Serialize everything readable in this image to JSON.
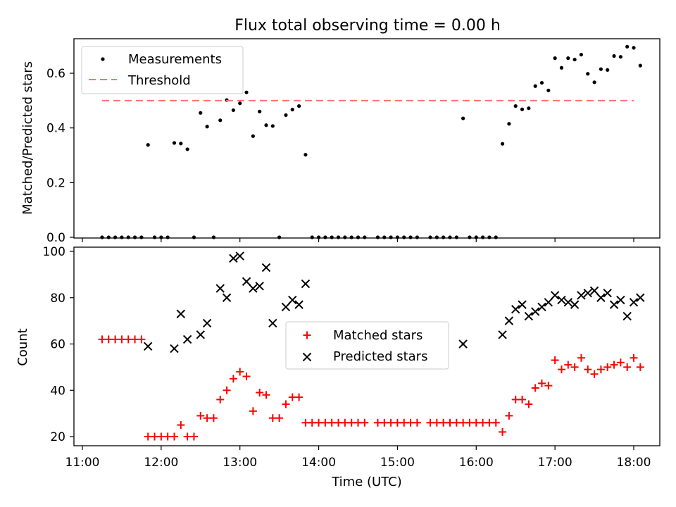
{
  "colors": {
    "measurements": "#000000",
    "threshold": "#ff7070",
    "matched": "#ff0000",
    "predicted": "#000000"
  },
  "chart_data": [
    {
      "type": "scatter",
      "title": "Flux total observing time = 0.00 h",
      "xlabel": "",
      "ylabel": "Matched/Predicted stars",
      "xlim": [
        "11:00",
        "18:00"
      ],
      "ylim": [
        0,
        0.72
      ],
      "yticks": [
        "0.0",
        "0.2",
        "0.4",
        "0.6"
      ],
      "legend_position": "top-left",
      "threshold": {
        "name": "Threshold",
        "value": 0.5,
        "x_range": [
          "11:15",
          "18:00"
        ]
      },
      "series": [
        {
          "name": "Measurements",
          "points": [
            [
              "11:15",
              0
            ],
            [
              "11:20",
              0
            ],
            [
              "11:25",
              0
            ],
            [
              "11:30",
              0
            ],
            [
              "11:35",
              0
            ],
            [
              "11:40",
              0
            ],
            [
              "11:45",
              0
            ],
            [
              "11:50",
              0.338
            ],
            [
              "11:55",
              0
            ],
            [
              "12:00",
              0
            ],
            [
              "12:05",
              0
            ],
            [
              "12:10",
              0.345
            ],
            [
              "12:15",
              0.343
            ],
            [
              "12:20",
              0.322
            ],
            [
              "12:25",
              0
            ],
            [
              "12:30",
              0.455
            ],
            [
              "12:35",
              0.405
            ],
            [
              "12:40",
              0
            ],
            [
              "12:45",
              0.428
            ],
            [
              "12:50",
              0.502
            ],
            [
              "12:55",
              0.465
            ],
            [
              "13:00",
              0.49
            ],
            [
              "13:05",
              0.53
            ],
            [
              "13:10",
              0.37
            ],
            [
              "13:15",
              0.46
            ],
            [
              "13:20",
              0.41
            ],
            [
              "13:25",
              0.407
            ],
            [
              "13:30",
              0
            ],
            [
              "13:35",
              0.447
            ],
            [
              "13:40",
              0.467
            ],
            [
              "13:45",
              0.48
            ],
            [
              "13:50",
              0.302
            ],
            [
              "13:55",
              0
            ],
            [
              "14:00",
              0
            ],
            [
              "14:05",
              0
            ],
            [
              "14:10",
              0
            ],
            [
              "14:15",
              0
            ],
            [
              "14:20",
              0
            ],
            [
              "14:25",
              0
            ],
            [
              "14:30",
              0
            ],
            [
              "14:35",
              0
            ],
            [
              "14:45",
              0
            ],
            [
              "14:50",
              0
            ],
            [
              "14:55",
              0
            ],
            [
              "15:00",
              0
            ],
            [
              "15:05",
              0
            ],
            [
              "15:10",
              0
            ],
            [
              "15:15",
              0
            ],
            [
              "15:25",
              0
            ],
            [
              "15:30",
              0
            ],
            [
              "15:35",
              0
            ],
            [
              "15:40",
              0
            ],
            [
              "15:45",
              0
            ],
            [
              "15:50",
              0.435
            ],
            [
              "15:55",
              0
            ],
            [
              "16:00",
              0
            ],
            [
              "16:05",
              0
            ],
            [
              "16:10",
              0
            ],
            [
              "16:15",
              0
            ],
            [
              "16:20",
              0.342
            ],
            [
              "16:25",
              0.415
            ],
            [
              "16:30",
              0.48
            ],
            [
              "16:35",
              0.468
            ],
            [
              "16:40",
              0.472
            ],
            [
              "16:45",
              0.553
            ],
            [
              "16:50",
              0.565
            ],
            [
              "16:55",
              0.537
            ],
            [
              "17:00",
              0.655
            ],
            [
              "17:05",
              0.62
            ],
            [
              "17:10",
              0.655
            ],
            [
              "17:15",
              0.65
            ],
            [
              "17:20",
              0.668
            ],
            [
              "17:25",
              0.598
            ],
            [
              "17:30",
              0.567
            ],
            [
              "17:35",
              0.615
            ],
            [
              "17:40",
              0.612
            ],
            [
              "17:45",
              0.663
            ],
            [
              "17:50",
              0.66
            ],
            [
              "17:55",
              0.697
            ],
            [
              "18:00",
              0.693
            ],
            [
              "18:05",
              0.628
            ]
          ]
        }
      ]
    },
    {
      "type": "scatter",
      "title": "",
      "xlabel": "Time (UTC)",
      "ylabel": "Count",
      "xlim": [
        "11:00",
        "18:00"
      ],
      "xticks": [
        "11:00",
        "12:00",
        "13:00",
        "14:00",
        "15:00",
        "16:00",
        "17:00",
        "18:00"
      ],
      "ylim": [
        17,
        101
      ],
      "yticks": [
        "20",
        "40",
        "60",
        "80",
        "100"
      ],
      "legend_position": "center",
      "series": [
        {
          "name": "Matched stars",
          "points": [
            [
              "11:15",
              62
            ],
            [
              "11:20",
              62
            ],
            [
              "11:25",
              62
            ],
            [
              "11:30",
              62
            ],
            [
              "11:35",
              62
            ],
            [
              "11:40",
              62
            ],
            [
              "11:45",
              62
            ],
            [
              "11:50",
              20
            ],
            [
              "11:55",
              20
            ],
            [
              "12:00",
              20
            ],
            [
              "12:05",
              20
            ],
            [
              "12:10",
              20
            ],
            [
              "12:15",
              25
            ],
            [
              "12:20",
              20
            ],
            [
              "12:25",
              20
            ],
            [
              "12:30",
              29
            ],
            [
              "12:35",
              28
            ],
            [
              "12:40",
              28
            ],
            [
              "12:45",
              36
            ],
            [
              "12:50",
              40
            ],
            [
              "12:55",
              45
            ],
            [
              "13:00",
              48
            ],
            [
              "13:05",
              46
            ],
            [
              "13:10",
              31
            ],
            [
              "13:15",
              39
            ],
            [
              "13:20",
              38
            ],
            [
              "13:25",
              28
            ],
            [
              "13:30",
              28
            ],
            [
              "13:35",
              34
            ],
            [
              "13:40",
              37
            ],
            [
              "13:45",
              37
            ],
            [
              "13:50",
              26
            ],
            [
              "13:55",
              26
            ],
            [
              "14:00",
              26
            ],
            [
              "14:05",
              26
            ],
            [
              "14:10",
              26
            ],
            [
              "14:15",
              26
            ],
            [
              "14:20",
              26
            ],
            [
              "14:25",
              26
            ],
            [
              "14:30",
              26
            ],
            [
              "14:35",
              26
            ],
            [
              "14:45",
              26
            ],
            [
              "14:50",
              26
            ],
            [
              "14:55",
              26
            ],
            [
              "15:00",
              26
            ],
            [
              "15:05",
              26
            ],
            [
              "15:10",
              26
            ],
            [
              "15:15",
              26
            ],
            [
              "15:25",
              26
            ],
            [
              "15:30",
              26
            ],
            [
              "15:35",
              26
            ],
            [
              "15:40",
              26
            ],
            [
              "15:45",
              26
            ],
            [
              "15:50",
              26
            ],
            [
              "15:55",
              26
            ],
            [
              "16:00",
              26
            ],
            [
              "16:05",
              26
            ],
            [
              "16:10",
              26
            ],
            [
              "16:15",
              26
            ],
            [
              "16:20",
              22
            ],
            [
              "16:25",
              29
            ],
            [
              "16:30",
              36
            ],
            [
              "16:35",
              36
            ],
            [
              "16:40",
              34
            ],
            [
              "16:45",
              41
            ],
            [
              "16:50",
              43
            ],
            [
              "16:55",
              42
            ],
            [
              "17:00",
              53
            ],
            [
              "17:05",
              49
            ],
            [
              "17:10",
              51
            ],
            [
              "17:15",
              50
            ],
            [
              "17:20",
              54
            ],
            [
              "17:25",
              49
            ],
            [
              "17:30",
              47
            ],
            [
              "17:35",
              49
            ],
            [
              "17:40",
              50
            ],
            [
              "17:45",
              51
            ],
            [
              "17:50",
              52
            ],
            [
              "17:55",
              50
            ],
            [
              "18:00",
              54
            ],
            [
              "18:05",
              50
            ]
          ]
        },
        {
          "name": "Predicted stars",
          "points": [
            [
              "11:50",
              59
            ],
            [
              "12:10",
              58
            ],
            [
              "12:15",
              73
            ],
            [
              "12:20",
              62
            ],
            [
              "12:30",
              64
            ],
            [
              "12:35",
              69
            ],
            [
              "12:45",
              84
            ],
            [
              "12:50",
              80
            ],
            [
              "12:55",
              97
            ],
            [
              "13:00",
              98
            ],
            [
              "13:05",
              87
            ],
            [
              "13:10",
              84
            ],
            [
              "13:15",
              85
            ],
            [
              "13:20",
              93
            ],
            [
              "13:25",
              69
            ],
            [
              "13:35",
              76
            ],
            [
              "13:40",
              79
            ],
            [
              "13:45",
              77
            ],
            [
              "13:50",
              86
            ],
            [
              "15:50",
              60
            ],
            [
              "16:20",
              64
            ],
            [
              "16:25",
              70
            ],
            [
              "16:30",
              75
            ],
            [
              "16:35",
              77
            ],
            [
              "16:40",
              72
            ],
            [
              "16:45",
              74
            ],
            [
              "16:50",
              76
            ],
            [
              "16:55",
              78
            ],
            [
              "17:00",
              81
            ],
            [
              "17:05",
              79
            ],
            [
              "17:10",
              78
            ],
            [
              "17:15",
              77
            ],
            [
              "17:20",
              81
            ],
            [
              "17:25",
              82
            ],
            [
              "17:30",
              83
            ],
            [
              "17:35",
              80
            ],
            [
              "17:40",
              82
            ],
            [
              "17:45",
              77
            ],
            [
              "17:50",
              79
            ],
            [
              "17:55",
              72
            ],
            [
              "18:00",
              78
            ],
            [
              "18:05",
              80
            ]
          ]
        }
      ]
    }
  ]
}
